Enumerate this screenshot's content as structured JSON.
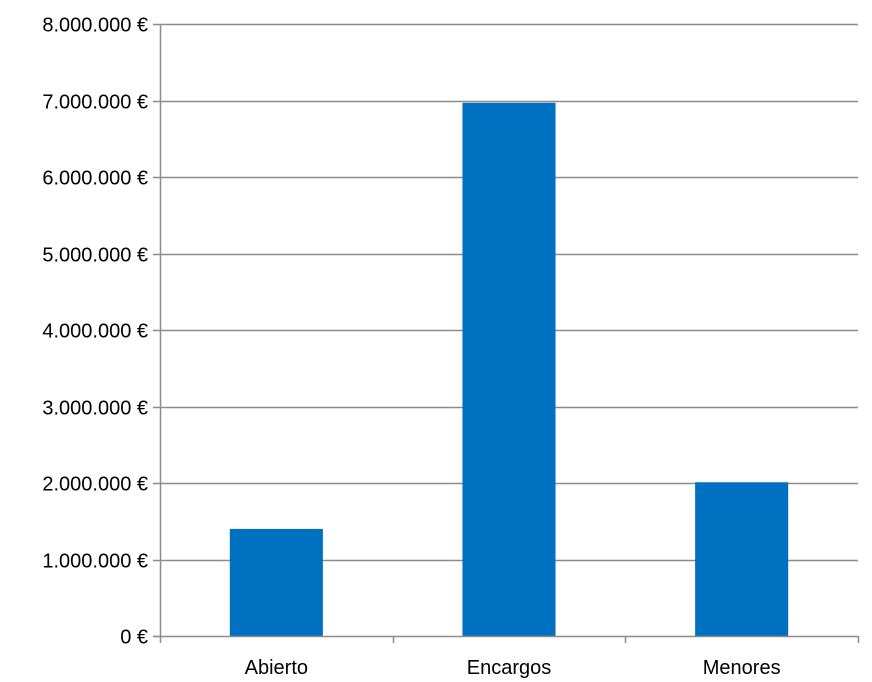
{
  "chart_data": {
    "type": "bar",
    "categories": [
      "Abierto",
      "Encargos",
      "Menores"
    ],
    "values": [
      1400000,
      6970000,
      2010000
    ],
    "ylim": [
      0,
      8000000
    ],
    "y_ticks": [
      0,
      1000000,
      2000000,
      3000000,
      4000000,
      5000000,
      6000000,
      7000000,
      8000000
    ],
    "y_tick_labels": [
      "0 €",
      "1.000.000 €",
      "2.000.000 €",
      "3.000.000 €",
      "4.000.000 €",
      "5.000.000 €",
      "6.000.000 €",
      "7.000.000 €",
      "8.000.000 €"
    ],
    "grid": true,
    "legend": "none",
    "bar_color": "#0070C0",
    "grid_color": "#8c8c8c"
  }
}
